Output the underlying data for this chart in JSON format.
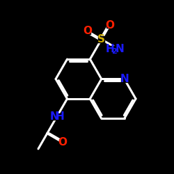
{
  "bg_color": "#000000",
  "bond_color": "#ffffff",
  "bond_width": 2.2,
  "atom_colors": {
    "N": "#1a1aff",
    "O": "#ff2000",
    "S": "#ccaa00",
    "C": "#ffffff",
    "H": "#ffffff"
  },
  "font_size_atom": 11,
  "font_size_subscript": 8,
  "bl": 0.5
}
